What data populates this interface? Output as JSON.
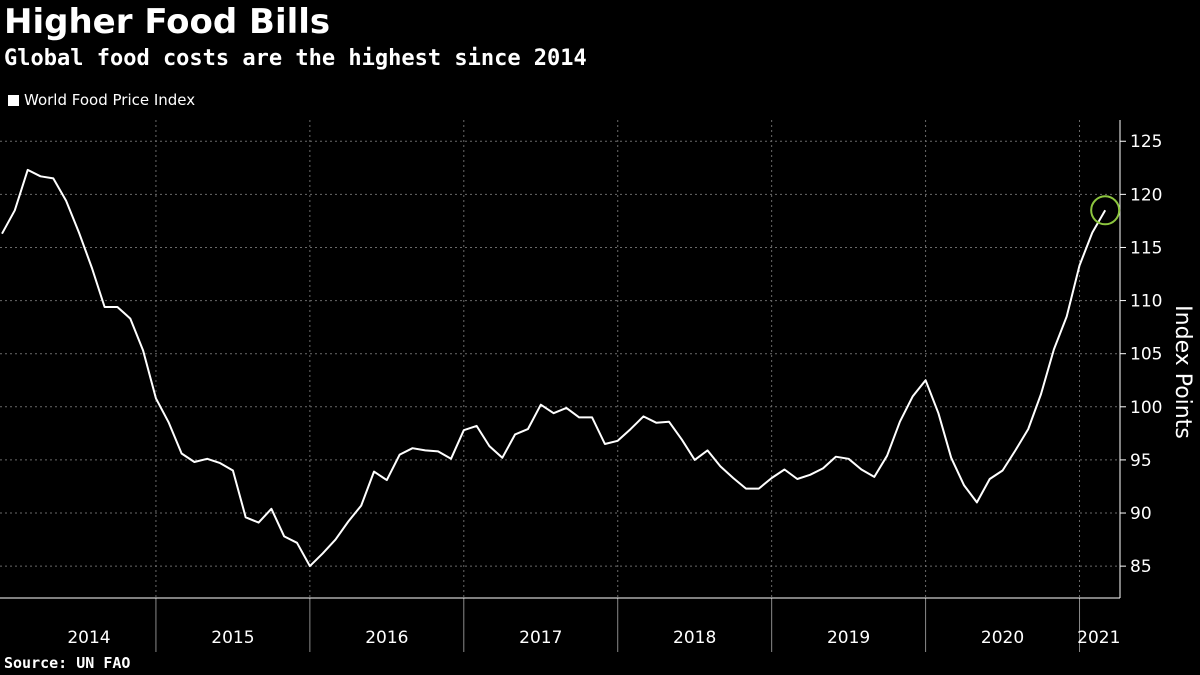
{
  "header": {
    "title": "Higher Food Bills",
    "subtitle": "Global food costs are the highest since 2014"
  },
  "footer": {
    "source": "Source: UN FAO"
  },
  "colors": {
    "background": "#000000",
    "line": "#ffffff",
    "grid": "#6a6a6a",
    "highlight": "#8dc63f"
  },
  "chart_data": {
    "type": "line",
    "title": "Higher Food Bills",
    "subtitle": "Global food costs are the highest since 2014",
    "ylabel": "Index Points",
    "xlabel": "",
    "ylim": [
      82,
      127
    ],
    "y_ticks": [
      85,
      90,
      95,
      100,
      105,
      110,
      115,
      120,
      125
    ],
    "x_range": [
      "2014-01",
      "2021-04"
    ],
    "x_tick_labels": [
      "2014",
      "2015",
      "2016",
      "2017",
      "2018",
      "2019",
      "2020",
      "2021"
    ],
    "y_axis_position": "right",
    "grid": true,
    "legend": "top-left",
    "highlight_last_point": true,
    "series": [
      {
        "name": "World Food Price Index",
        "x": [
          "2014-01",
          "2014-02",
          "2014-03",
          "2014-04",
          "2014-05",
          "2014-06",
          "2014-07",
          "2014-08",
          "2014-09",
          "2014-10",
          "2014-11",
          "2014-12",
          "2015-01",
          "2015-02",
          "2015-03",
          "2015-04",
          "2015-05",
          "2015-06",
          "2015-07",
          "2015-08",
          "2015-09",
          "2015-10",
          "2015-11",
          "2015-12",
          "2016-01",
          "2016-02",
          "2016-03",
          "2016-04",
          "2016-05",
          "2016-06",
          "2016-07",
          "2016-08",
          "2016-09",
          "2016-10",
          "2016-11",
          "2016-12",
          "2017-01",
          "2017-02",
          "2017-03",
          "2017-04",
          "2017-05",
          "2017-06",
          "2017-07",
          "2017-08",
          "2017-09",
          "2017-10",
          "2017-11",
          "2017-12",
          "2018-01",
          "2018-02",
          "2018-03",
          "2018-04",
          "2018-05",
          "2018-06",
          "2018-07",
          "2018-08",
          "2018-09",
          "2018-10",
          "2018-11",
          "2018-12",
          "2019-01",
          "2019-02",
          "2019-03",
          "2019-04",
          "2019-05",
          "2019-06",
          "2019-07",
          "2019-08",
          "2019-09",
          "2019-10",
          "2019-11",
          "2019-12",
          "2020-01",
          "2020-02",
          "2020-03",
          "2020-04",
          "2020-05",
          "2020-06",
          "2020-07",
          "2020-08",
          "2020-09",
          "2020-10",
          "2020-11",
          "2020-12",
          "2021-01",
          "2021-02",
          "2021-03"
        ],
        "values": [
          116.3,
          118.5,
          122.3,
          121.7,
          121.5,
          119.4,
          116.4,
          113.1,
          109.4,
          109.4,
          108.3,
          105.3,
          100.8,
          98.5,
          95.6,
          94.8,
          95.1,
          94.7,
          94.0,
          89.6,
          89.1,
          90.4,
          87.8,
          87.2,
          85.0,
          86.2,
          87.5,
          89.2,
          90.7,
          93.9,
          93.1,
          95.5,
          96.1,
          95.9,
          95.8,
          95.1,
          97.8,
          98.2,
          96.3,
          95.2,
          97.4,
          97.9,
          100.2,
          99.4,
          99.9,
          99.0,
          99.0,
          96.5,
          96.8,
          97.9,
          99.1,
          98.5,
          98.6,
          96.9,
          95.0,
          95.9,
          94.4,
          93.3,
          92.3,
          92.3,
          93.3,
          94.1,
          93.2,
          93.6,
          94.2,
          95.3,
          95.1,
          94.1,
          93.4,
          95.4,
          98.6,
          101.0,
          102.5,
          99.4,
          95.2,
          92.6,
          91.0,
          93.2,
          94.0,
          95.9,
          97.9,
          101.2,
          105.4,
          108.5,
          113.3,
          116.4,
          118.5
        ]
      }
    ]
  }
}
